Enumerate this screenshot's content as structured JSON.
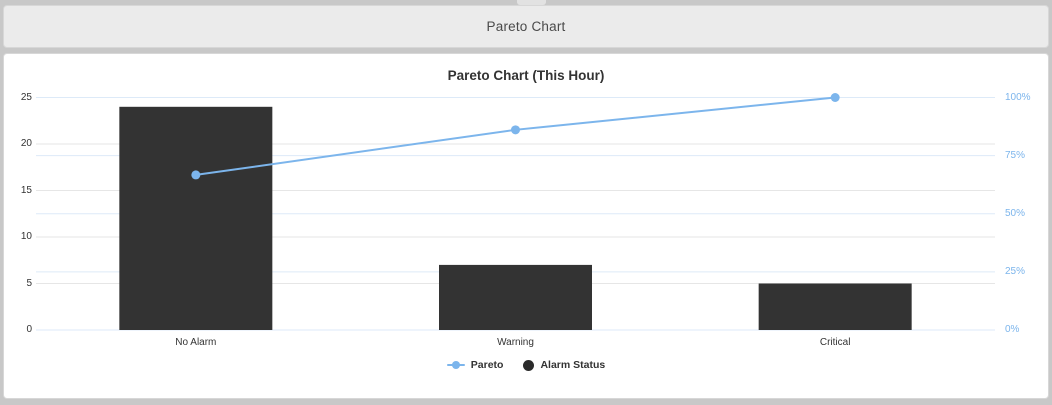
{
  "header": {
    "title": "Pareto Chart"
  },
  "chart_data": {
    "type": "pareto (bar + line combo)",
    "title": "Pareto Chart (This Hour)",
    "categories": [
      "No Alarm",
      "Warning",
      "Critical"
    ],
    "series": [
      {
        "name": "Alarm Status",
        "type": "bar",
        "axis": "left",
        "color": "#333333",
        "values": [
          24,
          7,
          5
        ]
      },
      {
        "name": "Pareto",
        "type": "line",
        "axis": "right",
        "color": "#7cb5ec",
        "cumulative_percent": [
          66.7,
          86.1,
          100
        ]
      }
    ],
    "y_left": {
      "min": 0,
      "max": 25,
      "ticks": [
        0,
        5,
        10,
        15,
        20,
        25
      ],
      "gridline_color": "#e6e6e6",
      "label_color": "#333333"
    },
    "y_right": {
      "min": 0,
      "max": 100,
      "tick_values": [
        0,
        25,
        50,
        75,
        100
      ],
      "tick_labels": [
        "0%",
        "25%",
        "50%",
        "75%",
        "100%"
      ],
      "gridline_color": "#ddeaf8",
      "label_color": "#7cb5ec"
    },
    "x_axis": {
      "label_color": "#333333"
    },
    "legend": [
      {
        "label": "Pareto",
        "marker": "line-dot",
        "color": "#7cb5ec"
      },
      {
        "label": "Alarm Status",
        "marker": "circle",
        "color": "#2b2b2b"
      }
    ],
    "grid": true,
    "legend_position": "bottom-center"
  }
}
